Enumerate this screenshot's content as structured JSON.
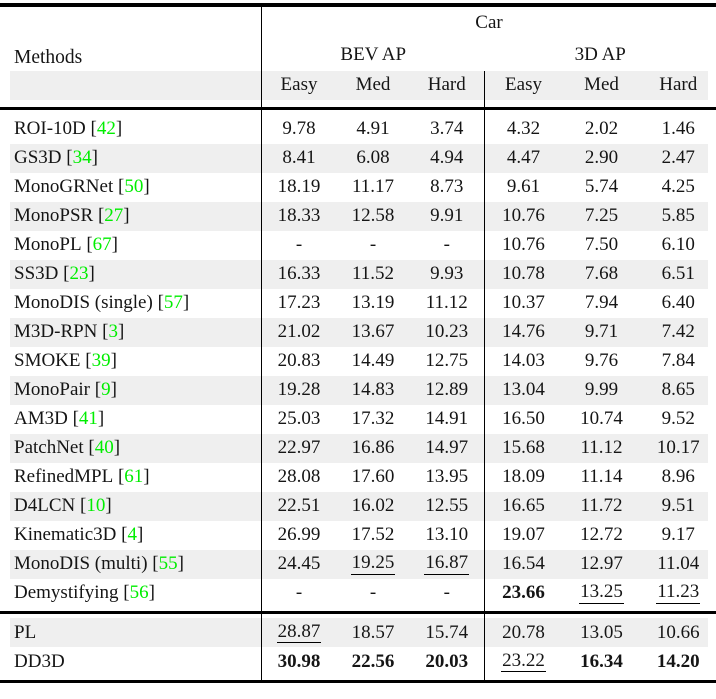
{
  "title_group": "Car",
  "columns": {
    "methods_label": "Methods",
    "groups": [
      {
        "label": "BEV AP",
        "sub": [
          "Easy",
          "Med",
          "Hard"
        ]
      },
      {
        "label": "3D AP",
        "sub": [
          "Easy",
          "Med",
          "Hard"
        ]
      }
    ]
  },
  "rows": [
    {
      "method": "ROI-10D",
      "cite": "42",
      "bev": [
        "9.78",
        "4.91",
        "3.74"
      ],
      "threed": [
        "4.32",
        "2.02",
        "1.46"
      ]
    },
    {
      "method": "GS3D",
      "cite": "34",
      "bev": [
        "8.41",
        "6.08",
        "4.94"
      ],
      "threed": [
        "4.47",
        "2.90",
        "2.47"
      ]
    },
    {
      "method": "MonoGRNet",
      "cite": "50",
      "bev": [
        "18.19",
        "11.17",
        "8.73"
      ],
      "threed": [
        "9.61",
        "5.74",
        "4.25"
      ]
    },
    {
      "method": "MonoPSR",
      "cite": "27",
      "bev": [
        "18.33",
        "12.58",
        "9.91"
      ],
      "threed": [
        "10.76",
        "7.25",
        "5.85"
      ]
    },
    {
      "method": "MonoPL",
      "cite": "67",
      "bev": [
        "-",
        "-",
        "-"
      ],
      "threed": [
        "10.76",
        "7.50",
        "6.10"
      ]
    },
    {
      "method": "SS3D",
      "cite": "23",
      "bev": [
        "16.33",
        "11.52",
        "9.93"
      ],
      "threed": [
        "10.78",
        "7.68",
        "6.51"
      ]
    },
    {
      "method": "MonoDIS (single)",
      "cite": "57",
      "bev": [
        "17.23",
        "13.19",
        "11.12"
      ],
      "threed": [
        "10.37",
        "7.94",
        "6.40"
      ]
    },
    {
      "method": "M3D-RPN",
      "cite": "3",
      "bev": [
        "21.02",
        "13.67",
        "10.23"
      ],
      "threed": [
        "14.76",
        "9.71",
        "7.42"
      ]
    },
    {
      "method": "SMOKE",
      "cite": "39",
      "bev": [
        "20.83",
        "14.49",
        "12.75"
      ],
      "threed": [
        "14.03",
        "9.76",
        "7.84"
      ]
    },
    {
      "method": "MonoPair",
      "cite": "9",
      "bev": [
        "19.28",
        "14.83",
        "12.89"
      ],
      "threed": [
        "13.04",
        "9.99",
        "8.65"
      ]
    },
    {
      "method": "AM3D",
      "cite": "41",
      "bev": [
        "25.03",
        "17.32",
        "14.91"
      ],
      "threed": [
        "16.50",
        "10.74",
        "9.52"
      ]
    },
    {
      "method": "PatchNet",
      "cite": "40",
      "bev": [
        "22.97",
        "16.86",
        "14.97"
      ],
      "threed": [
        "15.68",
        "11.12",
        "10.17"
      ]
    },
    {
      "method": "RefinedMPL",
      "cite": "61",
      "bev": [
        "28.08",
        "17.60",
        "13.95"
      ],
      "threed": [
        "18.09",
        "11.14",
        "8.96"
      ]
    },
    {
      "method": "D4LCN",
      "cite": "10",
      "bev": [
        "22.51",
        "16.02",
        "12.55"
      ],
      "threed": [
        "16.65",
        "11.72",
        "9.51"
      ]
    },
    {
      "method": "Kinematic3D",
      "cite": "4",
      "bev": [
        "26.99",
        "17.52",
        "13.10"
      ],
      "threed": [
        "19.07",
        "12.72",
        "9.17"
      ]
    },
    {
      "method": "MonoDIS (multi)",
      "cite": "55",
      "bev": [
        "24.45",
        {
          "v": "19.25",
          "s": "u"
        },
        {
          "v": "16.87",
          "s": "u"
        }
      ],
      "threed": [
        "16.54",
        "12.97",
        "11.04"
      ]
    },
    {
      "method": "Demystifying",
      "cite": "56",
      "bev": [
        "-",
        "-",
        "-"
      ],
      "threed": [
        {
          "v": "23.66",
          "s": "b"
        },
        {
          "v": "13.25",
          "s": "u"
        },
        {
          "v": "11.23",
          "s": "u"
        }
      ]
    }
  ],
  "footer_rows": [
    {
      "method": "PL",
      "cite": null,
      "bev": [
        {
          "v": "28.87",
          "s": "u"
        },
        "18.57",
        "15.74"
      ],
      "threed": [
        "20.78",
        "13.05",
        "10.66"
      ]
    },
    {
      "method": "DD3D",
      "cite": null,
      "bev": [
        {
          "v": "30.98",
          "s": "b"
        },
        {
          "v": "22.56",
          "s": "b"
        },
        {
          "v": "20.03",
          "s": "b"
        }
      ],
      "threed": [
        {
          "v": "23.22",
          "s": "u"
        },
        {
          "v": "16.34",
          "s": "b"
        },
        {
          "v": "14.20",
          "s": "b"
        }
      ]
    }
  ],
  "colors": {
    "citation_green": "#00EE00",
    "stripe_gray": "#EFEFEF",
    "rule_black": "#000000",
    "text": "#151515"
  }
}
